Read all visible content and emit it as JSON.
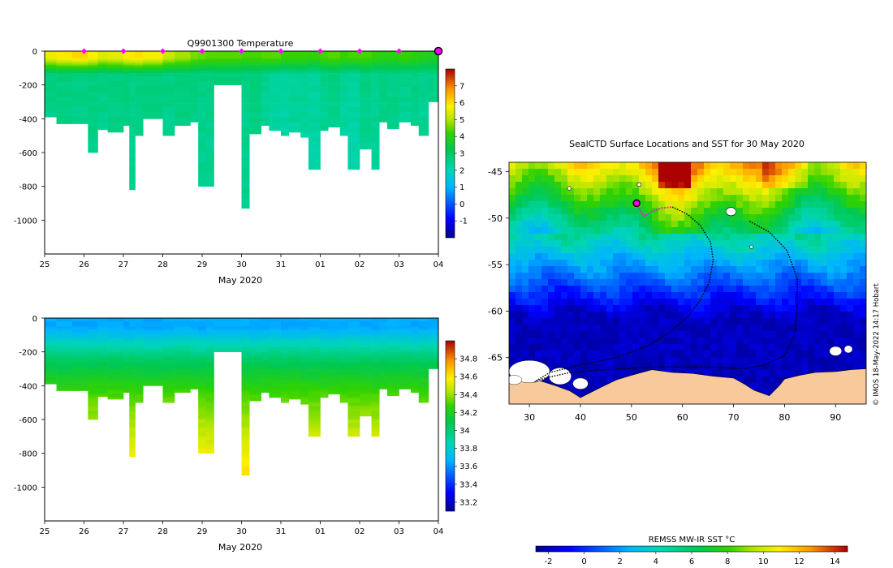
{
  "credit": "© IMOS 18-May-2022 14:17 Hobart",
  "colors": {
    "magenta": "#ff00ff",
    "land": "#f8c99a",
    "frame": "#000000"
  },
  "chart_data": [
    {
      "id": "temperature-section",
      "type": "heatmap",
      "title": "Q9901300  Temperature",
      "xlabel": "May 2020",
      "ylabel": "",
      "x_ticks": [
        "25",
        "26",
        "27",
        "28",
        "29",
        "30",
        "31",
        "01",
        "02",
        "03",
        "04"
      ],
      "y_ticks": [
        0,
        -200,
        -400,
        -600,
        -800,
        -1000
      ],
      "ylim": [
        -1200,
        0
      ],
      "xlim_days": [
        0,
        10
      ],
      "colorbar": {
        "ticks": [
          7,
          6,
          5,
          4,
          3,
          2,
          1,
          0,
          -1
        ],
        "range": [
          -2,
          8
        ]
      },
      "profile_markers_days": [
        1,
        2,
        3,
        4,
        5,
        6,
        7,
        8,
        9
      ],
      "current_marker_day": 10,
      "profiles": {
        "start_days": [
          0,
          0.3,
          0.7,
          1.1,
          1.35,
          1.6,
          2.0,
          2.15,
          2.3,
          2.5,
          3.0,
          3.3,
          3.7,
          3.9,
          4.1,
          4.3,
          5.0,
          5.2,
          5.5,
          5.7,
          6.0,
          6.2,
          6.5,
          6.7,
          7.0,
          7.2,
          7.5,
          7.7,
          8.0,
          8.3,
          8.5,
          8.7,
          9.0,
          9.3,
          9.5,
          9.75
        ],
        "max_depths_m": [
          390,
          430,
          430,
          600,
          465,
          480,
          440,
          820,
          500,
          400,
          500,
          440,
          420,
          800,
          800,
          200,
          930,
          490,
          440,
          470,
          500,
          480,
          510,
          700,
          470,
          450,
          500,
          700,
          580,
          700,
          420,
          460,
          420,
          440,
          500,
          300
        ],
        "surface_temps": [
          5.6,
          5.9,
          6.1,
          5.8,
          5.4,
          5.5,
          5.8,
          5.9,
          6.0,
          5.7,
          5.2,
          4.9,
          4.6,
          4.5,
          4.4,
          4.4,
          4.3,
          4.3,
          4.4,
          4.4,
          4.2,
          4.2,
          4.2,
          4.1,
          4.3,
          4.4,
          4.2,
          4.3,
          4.3,
          4.1,
          4.0,
          4.0,
          4.2,
          4.0,
          3.9,
          3.8
        ],
        "deep_temps": [
          2.6,
          2.7,
          2.6,
          2.7,
          2.6,
          2.7,
          2.7,
          2.6,
          2.7,
          2.7,
          2.6,
          2.7,
          2.7,
          2.6,
          2.6,
          2.7,
          2.6,
          2.7,
          2.5,
          2.4,
          2.3,
          2.4,
          2.4,
          2.3,
          2.5,
          2.6,
          2.4,
          2.3,
          2.6,
          2.5,
          2.6,
          2.6,
          2.5,
          2.6,
          2.5,
          2.6
        ]
      }
    },
    {
      "id": "salinity-section",
      "type": "heatmap",
      "title": "",
      "xlabel": "May 2020",
      "ylabel": "",
      "x_ticks": [
        "25",
        "26",
        "27",
        "28",
        "29",
        "30",
        "31",
        "01",
        "02",
        "03",
        "04"
      ],
      "y_ticks": [
        0,
        -200,
        -400,
        -600,
        -800,
        -1000
      ],
      "ylim": [
        -1200,
        0
      ],
      "xlim_days": [
        0,
        10
      ],
      "colorbar": {
        "ticks": [
          34.8,
          34.6,
          34.4,
          34.2,
          34,
          33.8,
          33.6,
          33.4,
          33.2
        ],
        "range": [
          33.1,
          35.0
        ]
      },
      "profiles": {
        "start_days": [
          0,
          0.3,
          0.7,
          1.1,
          1.35,
          1.6,
          2.0,
          2.15,
          2.3,
          2.5,
          3.0,
          3.3,
          3.7,
          3.9,
          4.1,
          4.3,
          5.0,
          5.2,
          5.5,
          5.7,
          6.0,
          6.2,
          6.5,
          6.7,
          7.0,
          7.2,
          7.5,
          7.7,
          8.0,
          8.3,
          8.5,
          8.7,
          9.0,
          9.3,
          9.5,
          9.75
        ],
        "max_depths_m": [
          390,
          430,
          430,
          600,
          465,
          480,
          440,
          820,
          500,
          400,
          500,
          440,
          420,
          800,
          800,
          200,
          930,
          490,
          440,
          470,
          500,
          480,
          510,
          700,
          470,
          450,
          500,
          700,
          580,
          700,
          420,
          460,
          420,
          440,
          500,
          300
        ],
        "surface_sal": [
          33.65,
          33.66,
          33.64,
          33.65,
          33.66,
          33.65,
          33.64,
          33.65,
          33.66,
          33.64,
          33.65,
          33.66,
          33.65,
          33.64,
          33.65,
          33.66,
          33.65,
          33.64,
          33.65,
          33.66,
          33.65,
          33.64,
          33.65,
          33.66,
          33.65,
          33.64,
          33.65,
          33.66,
          33.65,
          33.64,
          33.65,
          33.66,
          33.65,
          33.64,
          33.65,
          33.66
        ]
      }
    },
    {
      "id": "sst-map",
      "type": "heatmap",
      "title": "SealCTD Surface Locations and SST for 30 May 2020",
      "xlabel": "",
      "ylabel": "",
      "x_ticks": [
        30,
        40,
        50,
        60,
        70,
        80,
        90
      ],
      "y_ticks": [
        -45,
        -50,
        -55,
        -60,
        -65
      ],
      "xlim": [
        26,
        96
      ],
      "ylim": [
        -70,
        -44
      ],
      "colorbar": {
        "label": "REMSS MW-IR SST °C",
        "ticks": [
          -2,
          0,
          2,
          4,
          6,
          8,
          10,
          12,
          14
        ],
        "range": [
          -2.7,
          14.7
        ]
      },
      "track_lonlat": [
        [
          51,
          -48.4
        ],
        [
          52,
          -49.5
        ],
        [
          52.5,
          -49.8
        ],
        [
          54,
          -49.3
        ],
        [
          56,
          -48.9
        ],
        [
          58,
          -48.8
        ],
        [
          61,
          -49.6
        ],
        [
          63.5,
          -50.8
        ],
        [
          65.5,
          -52.6
        ],
        [
          66,
          -54.5
        ],
        [
          65.3,
          -56.8
        ],
        [
          63.5,
          -58.8
        ],
        [
          61,
          -60.6
        ],
        [
          57.5,
          -62.3
        ],
        [
          53,
          -63.8
        ],
        [
          47,
          -65.0
        ],
        [
          40,
          -65.8
        ],
        [
          34,
          -66.6
        ],
        [
          31,
          -67.6
        ],
        [
          33,
          -67.2
        ],
        [
          38,
          -66.6
        ],
        [
          45,
          -66.3
        ],
        [
          55,
          -66.0
        ],
        [
          65,
          -66.0
        ],
        [
          72,
          -66.2
        ],
        [
          76,
          -65.8
        ],
        [
          80,
          -64.8
        ],
        [
          82,
          -62.5
        ],
        [
          82.5,
          -59.5
        ],
        [
          82.5,
          -56.5
        ],
        [
          80.5,
          -53.5
        ],
        [
          77,
          -51.5
        ],
        [
          73,
          -50.3
        ]
      ],
      "current_position_lonlat": [
        51,
        -48.4
      ]
    }
  ]
}
